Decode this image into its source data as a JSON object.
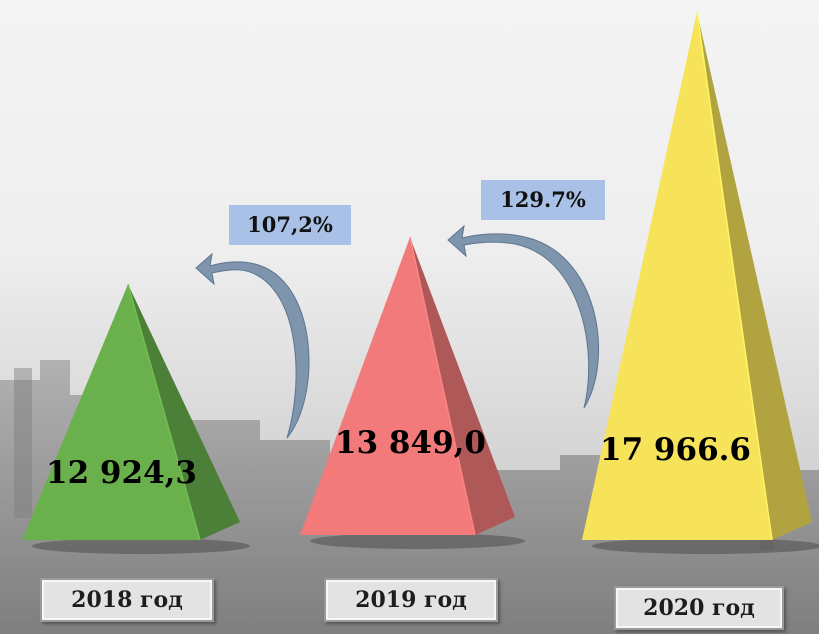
{
  "chart_data": {
    "type": "bar",
    "categories": [
      "2018 год",
      "2019 год",
      "2020 год"
    ],
    "values": [
      12924.3,
      13849.0,
      17966.6
    ],
    "value_labels": [
      "12 924,3",
      "13 849,0",
      "17 966.6"
    ],
    "growth_labels": [
      "107,2%",
      "129.7%"
    ],
    "colors": [
      "#6ab04c",
      "#f27a7a",
      "#f7e35a"
    ],
    "title": "",
    "xlabel": "",
    "ylabel": ""
  }
}
